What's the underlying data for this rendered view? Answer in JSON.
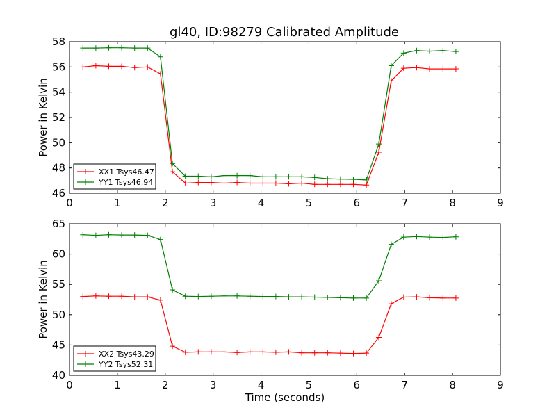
{
  "chart_data": [
    {
      "type": "line",
      "title": "gl40, ID:98279 Calibrated Amplitude",
      "xlabel": "",
      "ylabel": "Power in Kelvin",
      "xlim": [
        0,
        9
      ],
      "ylim": [
        46,
        58
      ],
      "xticks": [
        0,
        1,
        2,
        3,
        4,
        5,
        6,
        7,
        8,
        9
      ],
      "yticks": [
        46,
        48,
        50,
        52,
        54,
        56,
        58
      ],
      "xtick_labels": [
        "0",
        "1",
        "2",
        "3",
        "4",
        "5",
        "6",
        "7",
        "8",
        "9"
      ],
      "ytick_labels": [
        "46",
        "48",
        "50",
        "52",
        "54",
        "56",
        "58"
      ],
      "legend_position": "lower-left",
      "x": [
        0.28,
        0.55,
        0.82,
        1.09,
        1.36,
        1.63,
        1.9,
        2.15,
        2.42,
        2.69,
        2.96,
        3.23,
        3.5,
        3.77,
        4.04,
        4.31,
        4.58,
        4.85,
        5.12,
        5.39,
        5.66,
        5.93,
        6.2,
        6.46,
        6.72,
        6.98,
        7.25,
        7.52,
        7.8,
        8.07
      ],
      "series": [
        {
          "name": "XX1 Tsys46.47",
          "color": "#ff0000",
          "values": [
            56.0,
            56.1,
            56.05,
            56.05,
            55.95,
            56.0,
            55.45,
            47.7,
            46.8,
            46.85,
            46.85,
            46.8,
            46.85,
            46.8,
            46.8,
            46.8,
            46.75,
            46.8,
            46.7,
            46.7,
            46.7,
            46.7,
            46.65,
            49.25,
            54.9,
            55.9,
            55.95,
            55.85,
            55.85,
            55.85
          ]
        },
        {
          "name": "YY1 Tsys46.94",
          "color": "#008000",
          "values": [
            57.5,
            57.5,
            57.52,
            57.52,
            57.5,
            57.5,
            56.8,
            48.35,
            47.35,
            47.35,
            47.3,
            47.4,
            47.4,
            47.4,
            47.3,
            47.3,
            47.3,
            47.3,
            47.25,
            47.15,
            47.12,
            47.1,
            47.05,
            49.9,
            56.1,
            57.1,
            57.3,
            57.25,
            57.3,
            57.22
          ]
        }
      ]
    },
    {
      "type": "line",
      "title": "",
      "xlabel": "Time (seconds)",
      "ylabel": "Power in Kelvin",
      "xlim": [
        0,
        9
      ],
      "ylim": [
        40,
        65
      ],
      "xticks": [
        0,
        1,
        2,
        3,
        4,
        5,
        6,
        7,
        8,
        9
      ],
      "yticks": [
        40,
        45,
        50,
        55,
        60,
        65
      ],
      "xtick_labels": [
        "0",
        "1",
        "2",
        "3",
        "4",
        "5",
        "6",
        "7",
        "8",
        "9"
      ],
      "ytick_labels": [
        "40",
        "45",
        "50",
        "55",
        "60",
        "65"
      ],
      "legend_position": "lower-left",
      "x": [
        0.28,
        0.55,
        0.82,
        1.09,
        1.36,
        1.63,
        1.9,
        2.15,
        2.42,
        2.69,
        2.96,
        3.23,
        3.5,
        3.77,
        4.04,
        4.31,
        4.58,
        4.85,
        5.12,
        5.39,
        5.66,
        5.93,
        6.2,
        6.46,
        6.72,
        6.98,
        7.25,
        7.52,
        7.8,
        8.07
      ],
      "series": [
        {
          "name": "XX2 Tsys43.29",
          "color": "#ff0000",
          "values": [
            53.0,
            53.1,
            53.05,
            53.05,
            52.95,
            52.95,
            52.4,
            44.8,
            43.8,
            43.85,
            43.85,
            43.85,
            43.75,
            43.85,
            43.85,
            43.8,
            43.85,
            43.7,
            43.7,
            43.7,
            43.65,
            43.6,
            43.65,
            46.25,
            51.8,
            52.9,
            52.95,
            52.8,
            52.75,
            52.75
          ]
        },
        {
          "name": "YY2 Tsys52.31",
          "color": "#008000",
          "values": [
            63.2,
            63.1,
            63.2,
            63.15,
            63.15,
            63.1,
            62.4,
            54.1,
            53.05,
            53.0,
            53.05,
            53.1,
            53.1,
            53.05,
            53.0,
            53.0,
            52.95,
            52.95,
            52.9,
            52.85,
            52.8,
            52.75,
            52.75,
            55.6,
            61.6,
            62.8,
            62.9,
            62.8,
            62.75,
            62.85
          ]
        }
      ]
    }
  ]
}
